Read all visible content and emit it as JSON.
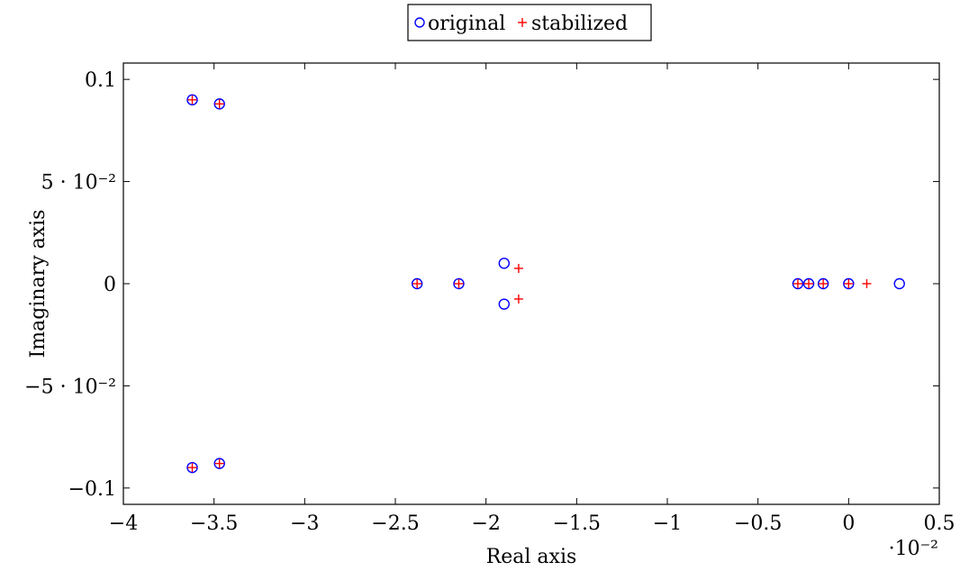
{
  "chart_data": {
    "type": "scatter",
    "xlabel": "Real axis",
    "ylabel": "Imaginary axis",
    "x_multiplier": "·10⁻²",
    "xlim": [
      -4,
      0.5
    ],
    "ylim": [
      -0.108,
      0.108
    ],
    "grid": false,
    "legend_position": "top-center",
    "x_ticks": [
      -4,
      -3.5,
      -3,
      -2.5,
      -2,
      -1.5,
      -1,
      -0.5,
      0,
      0.5
    ],
    "x_tick_labels": [
      "−4",
      "−3.5",
      "−3",
      "−2.5",
      "−2",
      "−1.5",
      "−1",
      "−0.5",
      "0",
      "0.5"
    ],
    "y_ticks": [
      -0.1,
      -0.05,
      0,
      0.05,
      0.1
    ],
    "y_tick_labels": [
      "−0.1",
      "−5 · 10⁻²",
      "0",
      "5 · 10⁻²",
      "0.1"
    ],
    "series": [
      {
        "name": "original",
        "marker": "circle",
        "color": "#0000ff",
        "x": [
          -3.62,
          -3.47,
          -3.62,
          -3.47,
          -2.38,
          -2.15,
          -1.9,
          -1.9,
          -0.28,
          -0.22,
          -0.14,
          0,
          0.28
        ],
        "y": [
          0.09,
          0.088,
          -0.09,
          -0.088,
          0,
          0,
          0.01,
          -0.01,
          0,
          0,
          0,
          0,
          0
        ]
      },
      {
        "name": "stabilized",
        "marker": "plus",
        "color": "#ff0000",
        "x": [
          -3.62,
          -3.47,
          -3.62,
          -3.47,
          -2.38,
          -2.15,
          -1.82,
          -1.82,
          -0.28,
          -0.22,
          -0.14,
          0,
          0.1
        ],
        "y": [
          0.09,
          0.088,
          -0.09,
          -0.088,
          0,
          0,
          0.0075,
          -0.0075,
          0,
          0,
          0,
          0,
          0
        ]
      }
    ]
  }
}
